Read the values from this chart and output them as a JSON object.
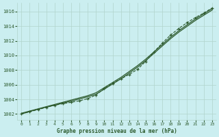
{
  "title": "Graphe pression niveau de la mer (hPa)",
  "background_color": "#cbeef0",
  "grid_color": "#b0d4cc",
  "line_color": "#2d5a2d",
  "xlim": [
    -0.5,
    23.5
  ],
  "ylim": [
    1001.2,
    1017.2
  ],
  "yticks": [
    1002,
    1004,
    1006,
    1008,
    1010,
    1012,
    1014,
    1016
  ],
  "xticks": [
    0,
    1,
    2,
    3,
    4,
    5,
    6,
    7,
    8,
    9,
    10,
    11,
    12,
    13,
    14,
    15,
    16,
    17,
    18,
    19,
    20,
    21,
    22,
    23
  ],
  "x": [
    0,
    1,
    2,
    3,
    4,
    5,
    6,
    7,
    8,
    9,
    10,
    11,
    12,
    13,
    14,
    15,
    16,
    17,
    18,
    19,
    20,
    21,
    22,
    23
  ],
  "line1": [
    1002.1,
    1002.4,
    1002.7,
    1003.0,
    1003.3,
    1003.6,
    1003.9,
    1004.2,
    1004.5,
    1004.9,
    1005.6,
    1006.3,
    1007.0,
    1007.8,
    1008.6,
    1009.5,
    1010.5,
    1011.5,
    1012.5,
    1013.4,
    1014.2,
    1015.0,
    1015.7,
    1016.4
  ],
  "line2": [
    1002.0,
    1002.35,
    1002.65,
    1002.95,
    1003.2,
    1003.5,
    1003.75,
    1004.05,
    1004.35,
    1004.7,
    1005.4,
    1006.1,
    1006.8,
    1007.6,
    1008.4,
    1009.3,
    1010.3,
    1011.3,
    1012.3,
    1013.2,
    1014.0,
    1014.8,
    1015.5,
    1016.2
  ],
  "line3": [
    1002.0,
    1002.3,
    1002.6,
    1002.9,
    1003.2,
    1003.4,
    1003.6,
    1003.8,
    1004.1,
    1004.6,
    1005.5,
    1006.2,
    1006.8,
    1007.4,
    1008.1,
    1009.2,
    1010.5,
    1011.7,
    1012.8,
    1013.7,
    1014.5,
    1015.2,
    1015.8,
    1016.5
  ]
}
